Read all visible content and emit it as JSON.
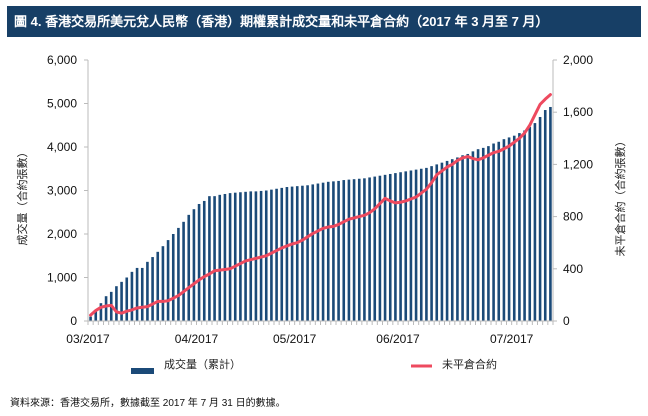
{
  "title": "圖 4. 香港交易所美元兌人民幣（香港）期權累計成交量和未平倉合約（2017 年 3 月至 7 月）",
  "source": "資料來源：香港交易所，數據截至 2017 年 7 月 31 日的數據。",
  "legend": {
    "volume_label": "成交量（累計）",
    "oi_label": "未平倉合約"
  },
  "colors": {
    "title_bg": "#173f66",
    "bar": "#1b4a78",
    "line": "#ee4a5f",
    "axis": "#bbbbbb"
  },
  "chart_data": {
    "type": "bar+line",
    "title": "香港交易所美元兌人民幣（香港）期權累計成交量和未平倉合約（2017 年 3 月至 7 月）",
    "xlabel": "",
    "ylabel_left": "成交量（合約張數）",
    "ylabel_right": "未平倉合約（合約張數）",
    "ylim_left": [
      0,
      6000
    ],
    "ylim_right": [
      0,
      2000
    ],
    "yticks_left": [
      "0",
      "1,000",
      "2,000",
      "3,000",
      "4,000",
      "5,000",
      "6,000"
    ],
    "yticks_right": [
      "0",
      "400",
      "800",
      "1,200",
      "1,600",
      "2,000"
    ],
    "x_tick_labels": [
      "03/2017",
      "04/2017",
      "05/2017",
      "06/2017",
      "07/2017"
    ],
    "x_tick_indices": [
      0,
      21,
      40,
      60,
      82
    ],
    "grid": false,
    "legend_position": "bottom",
    "series": [
      {
        "name": "成交量（累計）",
        "type": "bar",
        "axis": "left",
        "values": [
          100,
          230,
          410,
          570,
          670,
          800,
          900,
          1000,
          1130,
          1220,
          1220,
          1360,
          1470,
          1590,
          1720,
          1860,
          2000,
          2140,
          2280,
          2440,
          2570,
          2690,
          2760,
          2870,
          2870,
          2900,
          2920,
          2940,
          2950,
          2960,
          2970,
          2980,
          2980,
          2990,
          3000,
          3020,
          3040,
          3060,
          3080,
          3090,
          3100,
          3110,
          3120,
          3140,
          3160,
          3180,
          3200,
          3210,
          3220,
          3240,
          3250,
          3260,
          3270,
          3280,
          3300,
          3320,
          3340,
          3360,
          3380,
          3400,
          3420,
          3440,
          3460,
          3480,
          3500,
          3520,
          3560,
          3600,
          3640,
          3680,
          3720,
          3760,
          3810,
          3840,
          3900,
          3950,
          3980,
          4020,
          4080,
          4120,
          4180,
          4220,
          4260,
          4320,
          4380,
          4460,
          4550,
          4690,
          4850,
          4920
        ]
      },
      {
        "name": "未平倉合約",
        "type": "line",
        "axis": "right",
        "values": [
          45,
          80,
          105,
          115,
          120,
          70,
          60,
          75,
          85,
          100,
          105,
          110,
          130,
          150,
          150,
          155,
          175,
          195,
          225,
          255,
          285,
          315,
          340,
          360,
          385,
          390,
          395,
          400,
          420,
          440,
          460,
          470,
          480,
          490,
          500,
          520,
          540,
          560,
          575,
          590,
          600,
          620,
          645,
          670,
          690,
          710,
          720,
          725,
          740,
          760,
          780,
          790,
          800,
          810,
          830,
          860,
          900,
          940,
          920,
          905,
          910,
          920,
          935,
          950,
          980,
          1010,
          1060,
          1120,
          1150,
          1180,
          1200,
          1230,
          1250,
          1260,
          1245,
          1235,
          1250,
          1270,
          1290,
          1300,
          1320,
          1340,
          1370,
          1400,
          1440,
          1500,
          1580,
          1660,
          1700,
          1735
        ]
      }
    ]
  }
}
